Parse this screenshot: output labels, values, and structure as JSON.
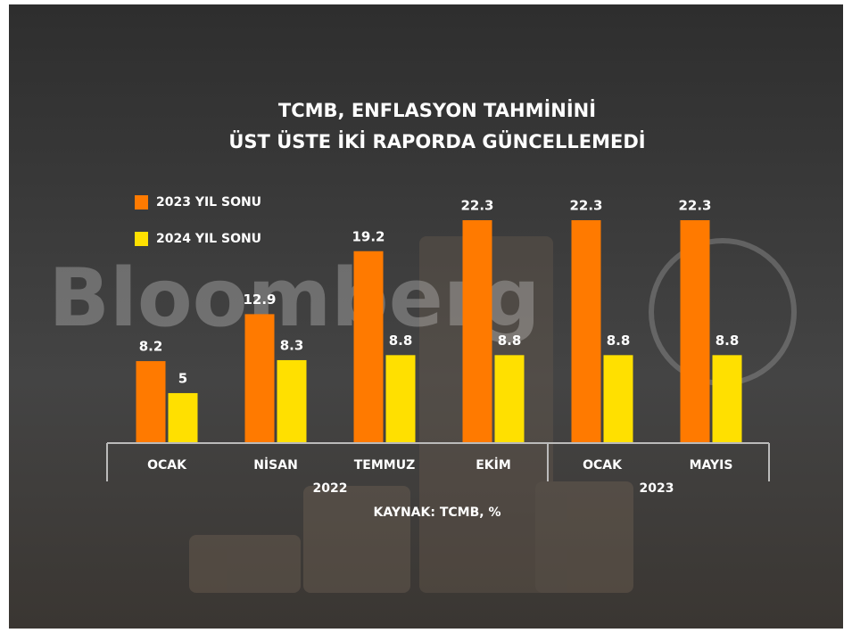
{
  "chart_data": {
    "type": "bar",
    "title": [
      "TCMB, ENFLASYON TAHMİNİNİ",
      "ÜST ÜSTE İKİ RAPORDA GÜNCELLEMEDİ"
    ],
    "watermark": "Bloomberg",
    "categories": [
      "OCAK",
      "NİSAN",
      "TEMMUZ",
      "EKİM",
      "OCAK",
      "MAYIS"
    ],
    "groups": [
      {
        "label": "2022",
        "span": [
          0,
          3
        ]
      },
      {
        "label": "2023",
        "span": [
          4,
          5
        ]
      }
    ],
    "series": [
      {
        "name": "2023 YIL SONU",
        "color": "#ff7a00",
        "values": [
          8.2,
          12.9,
          19.2,
          22.3,
          22.3,
          22.3
        ]
      },
      {
        "name": "2024 YIL SONU",
        "color": "#ffe000",
        "values": [
          5,
          8.3,
          8.8,
          8.8,
          8.8,
          8.8
        ]
      }
    ],
    "source": "KAYNAK: TCMB, %"
  }
}
